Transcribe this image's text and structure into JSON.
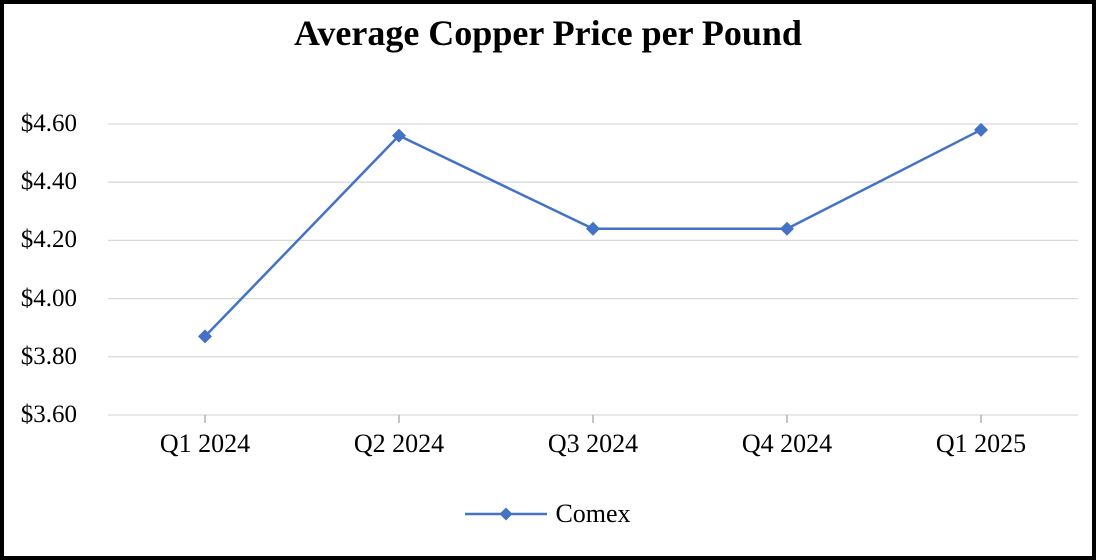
{
  "window": {
    "background_color": "#FFFFFF",
    "border_color": "#000000"
  },
  "chart_data": {
    "type": "line",
    "title": "Average Copper Price per Pound",
    "categories": [
      "Q1 2024",
      "Q2 2024",
      "Q3 2024",
      "Q4 2024",
      "Q1 2025"
    ],
    "series": [
      {
        "name": "Comex",
        "color": "#4472C4",
        "marker": "diamond",
        "values": [
          3.87,
          4.56,
          4.24,
          4.24,
          4.58
        ]
      }
    ],
    "y_axis": {
      "min": 3.6,
      "max": 4.6,
      "tick_step": 0.2,
      "tick_labels": [
        "$3.60",
        "$3.80",
        "$4.00",
        "$4.20",
        "$4.40",
        "$4.60"
      ],
      "format": "currency"
    },
    "x_axis": {
      "tick_marks": "below-axis-at-category-centers"
    },
    "grid": true,
    "gridline_color": "#D9D9D9",
    "axis_line_color": "#D9D9D9",
    "tick_mark_color": "#A6A6A6",
    "legend_position": "bottom-center",
    "xlabel": "",
    "ylabel": ""
  },
  "legend": {
    "items": [
      {
        "label": "Comex",
        "color": "#4472C4",
        "marker": "diamond-on-line"
      }
    ]
  }
}
